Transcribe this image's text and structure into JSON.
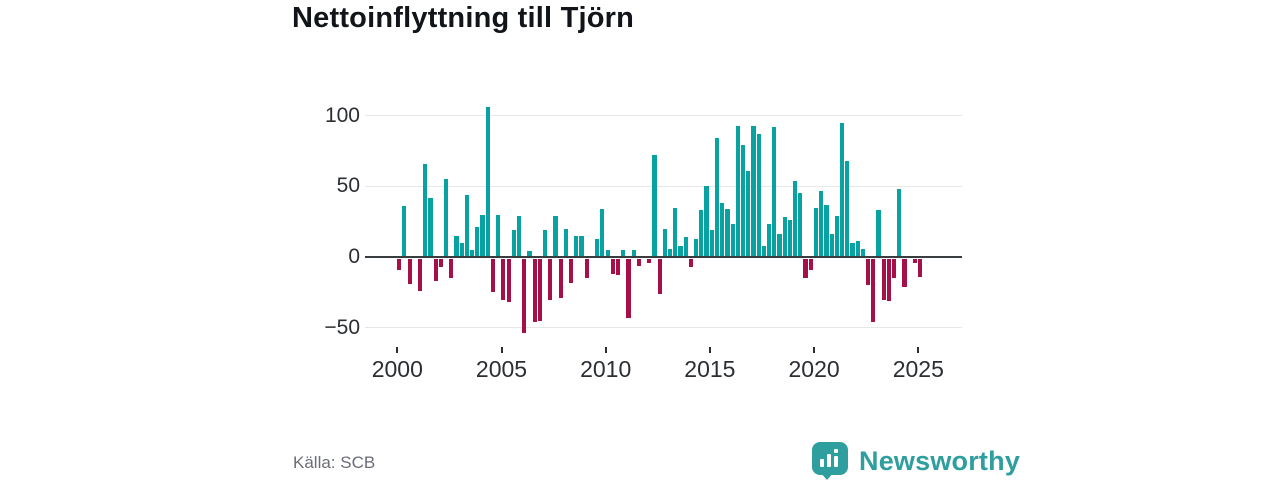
{
  "title": "Nettoinflyttning till Tjörn",
  "source": "Källa: SCB",
  "brand": {
    "name": "Newsworthy"
  },
  "colors": {
    "positive_bar": "#09a2a2",
    "negative_bar": "#a51048",
    "axis": "#3a3d40",
    "gridline": "#e7e7e9",
    "brand_teal": "#2f9e9e",
    "title_text": "#111418",
    "tick_text": "#2b2e33",
    "source_text": "#6b6d78"
  },
  "chart_data": {
    "type": "bar",
    "title": "Nettoinflyttning till Tjörn",
    "xlabel": "",
    "ylabel": "",
    "frequency": "quarterly",
    "x_start": {
      "year": 2000,
      "quarter": 1
    },
    "x_end": {
      "year": 2025,
      "quarter": 1
    },
    "ylim": [
      -60,
      112
    ],
    "grid": true,
    "legend": "none",
    "yticks": [
      {
        "value": 100,
        "label": "100"
      },
      {
        "value": 50,
        "label": "50"
      },
      {
        "value": 0,
        "label": "0"
      },
      {
        "value": -50,
        "label": "−50"
      }
    ],
    "xticks": [
      {
        "year": 2000,
        "label": "2000"
      },
      {
        "year": 2005,
        "label": "2005"
      },
      {
        "year": 2010,
        "label": "2010"
      },
      {
        "year": 2015,
        "label": "2015"
      },
      {
        "year": 2020,
        "label": "2020"
      },
      {
        "year": 2025,
        "label": "2025"
      }
    ],
    "values": [
      -8,
      36,
      -18,
      0,
      -23,
      66,
      42,
      -16,
      -6,
      55,
      -14,
      15,
      10,
      44,
      5,
      21,
      30,
      106,
      -24,
      30,
      -29,
      -31,
      19,
      29,
      -53,
      4,
      -45,
      -44,
      19,
      -29,
      29,
      -28,
      20,
      -17,
      15,
      15,
      -14,
      0,
      13,
      34,
      5,
      -11,
      -12,
      5,
      -42,
      5,
      -5,
      0,
      -3,
      72,
      -25,
      20,
      6,
      35,
      8,
      14,
      -6,
      13,
      33,
      50,
      19,
      84,
      38,
      34,
      23,
      93,
      79,
      61,
      93,
      87,
      8,
      23,
      92,
      16,
      28,
      26,
      54,
      45,
      -14,
      -8,
      35,
      47,
      37,
      16,
      29,
      95,
      68,
      10,
      11,
      6,
      -19,
      -45,
      33,
      -29,
      -30,
      -14,
      48,
      -20,
      0,
      -3,
      -13
    ]
  }
}
